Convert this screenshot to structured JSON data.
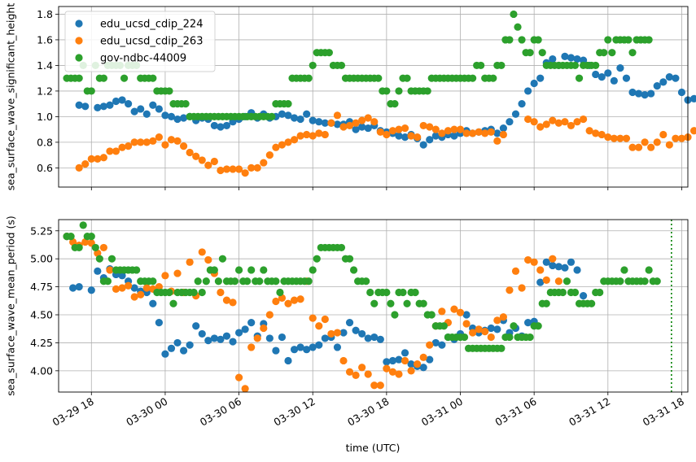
{
  "chart_data": {
    "type": "scatter",
    "xlabel": "time (UTC)",
    "xlim": [
      "2024-03-29T15:20",
      "2024-03-31T18:30"
    ],
    "x_ticks": [
      {
        "t": "2024-03-29T18:00",
        "label": "03-29 18"
      },
      {
        "t": "2024-03-30T00:00",
        "label": "03-30 00"
      },
      {
        "t": "2024-03-30T06:00",
        "label": "03-30 06"
      },
      {
        "t": "2024-03-30T12:00",
        "label": "03-30 12"
      },
      {
        "t": "2024-03-30T18:00",
        "label": "03-30 18"
      },
      {
        "t": "2024-03-31T00:00",
        "label": "03-31 00"
      },
      {
        "t": "2024-03-31T06:00",
        "label": "03-31 06"
      },
      {
        "t": "2024-03-31T12:00",
        "label": "03-31 12"
      },
      {
        "t": "2024-03-31T18:00",
        "label": "03-31 18"
      }
    ],
    "grid": true,
    "legend_location": "upper-left",
    "colors": {
      "edu_ucsd_cdip_224": "#1f77b4",
      "edu_ucsd_cdip_263": "#ff7f0e",
      "gov-ndbc-44009": "#2ca02c",
      "vline": "#008000"
    },
    "subplots": [
      {
        "ylabel": "sea_surface_wave_significant_height",
        "ylim": [
          0.45,
          1.86
        ],
        "yticks": [
          "0.6",
          "0.8",
          "1.0",
          "1.2",
          "1.4",
          "1.6",
          "1.8"
        ],
        "legend": true,
        "series": [
          {
            "name": "edu_ucsd_cdip_224",
            "x_start": "2024-03-29T17:00",
            "step_min": 30,
            "values": [
              1.09,
              1.08,
              null,
              1.07,
              1.08,
              1.09,
              1.12,
              1.13,
              1.1,
              1.04,
              1.06,
              1.02,
              1.09,
              1.06,
              1.01,
              1.0,
              0.98,
              0.99,
              1.0,
              0.97,
              0.99,
              0.98,
              0.93,
              0.92,
              0.93,
              0.96,
              0.98,
              1.0,
              1.03,
              0.99,
              1.02,
              0.99,
              1.0,
              1.02,
              1.01,
              0.99,
              0.98,
              1.02,
              0.97,
              0.96,
              0.95,
              0.95,
              0.94,
              0.94,
              0.96,
              0.9,
              0.92,
              0.91,
              0.93,
              0.89,
              0.88,
              0.87,
              0.85,
              0.84,
              0.86,
              0.83,
              0.78,
              0.82,
              0.85,
              0.84,
              0.86,
              0.85,
              0.87,
              0.89,
              0.87,
              0.88,
              0.89,
              0.9,
              0.87,
              0.91,
              0.96,
              1.02,
              1.1,
              1.2,
              1.26,
              1.3,
              1.42,
              1.45,
              1.4,
              1.47,
              1.46,
              1.45,
              1.44,
              1.4,
              1.33,
              1.31,
              1.34,
              1.28,
              1.38,
              1.3,
              1.19,
              1.18,
              1.17,
              1.18,
              1.24,
              1.27,
              1.31,
              1.3,
              1.19,
              1.13,
              1.14,
              1.21,
              1.13,
              1.12,
              1.14,
              1.18,
              1.13,
              1.24
            ]
          },
          {
            "name": "edu_ucsd_cdip_263",
            "x_start": "2024-03-29T17:00",
            "step_min": 30,
            "values": [
              0.6,
              0.63,
              0.67,
              0.67,
              0.68,
              0.73,
              0.73,
              0.76,
              0.77,
              0.8,
              0.8,
              0.8,
              0.81,
              0.84,
              0.78,
              0.82,
              0.81,
              0.77,
              0.72,
              0.69,
              0.66,
              0.62,
              0.65,
              0.58,
              0.59,
              0.59,
              0.59,
              0.56,
              0.6,
              0.6,
              0.64,
              0.7,
              0.76,
              0.78,
              0.8,
              0.82,
              0.85,
              0.86,
              0.85,
              0.87,
              0.86,
              0.95,
              1.01,
              0.92,
              0.93,
              0.95,
              0.97,
              0.99,
              0.96,
              0.88,
              0.86,
              0.89,
              0.9,
              0.91,
              0.85,
              0.84,
              0.93,
              0.92,
              0.9,
              0.87,
              0.89,
              0.9,
              0.9,
              0.87,
              0.87,
              0.88,
              0.87,
              0.88,
              0.81,
              0.86,
              null,
              null,
              null,
              0.98,
              0.96,
              0.92,
              0.94,
              0.97,
              0.95,
              0.96,
              0.93,
              0.96,
              0.98,
              0.89,
              0.87,
              0.86,
              0.84,
              0.83,
              0.83,
              0.83,
              0.76,
              0.76,
              0.8,
              0.76,
              0.8,
              0.86,
              0.78,
              0.83,
              0.83,
              0.84,
              0.89,
              0.94,
              0.96,
              1.0,
              1.02,
              1.09,
              1.01
            ]
          },
          {
            "name": "gov-ndbc-44009",
            "x_start": "2024-03-29T16:00",
            "step_min": 20,
            "values": [
              1.3,
              1.3,
              1.3,
              1.3,
              1.4,
              1.2,
              1.2,
              1.4,
              1.3,
              1.3,
              1.4,
              1.4,
              1.4,
              1.4,
              1.3,
              1.4,
              1.4,
              1.4,
              1.3,
              1.3,
              1.3,
              1.3,
              1.2,
              1.2,
              1.2,
              1.2,
              1.1,
              1.1,
              1.1,
              1.1,
              1.0,
              1.0,
              1.0,
              1.0,
              1.0,
              1.0,
              1.0,
              1.0,
              1.0,
              1.0,
              1.0,
              1.0,
              1.0,
              1.0,
              1.0,
              1.0,
              1.0,
              1.0,
              1.0,
              1.0,
              1.0,
              1.1,
              1.1,
              1.1,
              1.1,
              1.3,
              1.3,
              1.3,
              1.3,
              1.3,
              1.4,
              1.5,
              1.5,
              1.5,
              1.5,
              1.4,
              1.4,
              1.4,
              1.3,
              1.3,
              1.3,
              1.3,
              1.3,
              1.3,
              1.3,
              1.3,
              1.3,
              1.2,
              1.2,
              1.1,
              1.1,
              1.2,
              1.3,
              1.3,
              1.2,
              1.2,
              1.2,
              1.2,
              1.2,
              1.3,
              1.3,
              1.3,
              1.3,
              1.3,
              1.3,
              1.3,
              1.3,
              1.3,
              1.3,
              1.3,
              1.4,
              1.4,
              1.3,
              1.3,
              1.3,
              1.4,
              1.4,
              1.6,
              1.6,
              1.8,
              1.7,
              1.6,
              1.5,
              1.5,
              1.6,
              1.6,
              1.5,
              1.4,
              1.4,
              1.4,
              1.4,
              1.4,
              1.4,
              1.4,
              1.4,
              1.3,
              1.4,
              1.4,
              1.4,
              1.4,
              1.5,
              1.5,
              1.6,
              1.5,
              1.6,
              1.6,
              1.6,
              1.6,
              1.5,
              1.6,
              1.6,
              1.6,
              1.6
            ]
          }
        ]
      },
      {
        "ylabel": "sea_surface_wave_mean_period (s)",
        "ylim": [
          3.81,
          5.35
        ],
        "yticks": [
          "4.00",
          "4.25",
          "4.50",
          "4.75",
          "5.00",
          "5.25"
        ],
        "legend": false,
        "vline": "2024-03-31T17:10",
        "series": [
          {
            "name": "edu_ucsd_cdip_224",
            "x_start": "2024-03-29T16:00",
            "step_min": 30,
            "values": [
              5.2,
              4.74,
              4.75,
              null,
              4.72,
              4.89,
              4.83,
              4.91,
              4.86,
              4.85,
              4.8,
              4.74,
              4.71,
              4.7,
              4.6,
              4.43,
              4.15,
              4.2,
              4.25,
              4.18,
              4.23,
              4.4,
              4.33,
              4.27,
              4.29,
              4.28,
              4.31,
              4.26,
              4.34,
              4.37,
              4.43,
              4.31,
              4.42,
              4.29,
              4.18,
              4.3,
              4.09,
              4.19,
              4.21,
              4.19,
              4.21,
              4.23,
              4.29,
              4.3,
              4.21,
              4.34,
              4.43,
              4.36,
              4.33,
              4.29,
              4.3,
              4.28,
              4.08,
              4.09,
              4.1,
              4.16,
              4.06,
              4.04,
              4.03,
              4.1,
              4.25,
              4.23,
              4.3,
              4.28,
              4.33,
              4.5,
              4.38,
              4.34,
              4.36,
              4.38,
              4.37,
              4.45,
              4.34,
              4.38,
              4.31,
              4.43,
              4.44,
              4.79,
              4.97,
              4.94,
              4.93,
              4.92,
              4.97,
              4.9,
              4.67
            ]
          },
          {
            "name": "edu_ucsd_cdip_263",
            "x_start": "2024-03-29T16:00",
            "step_min": 30,
            "values": [
              5.2,
              5.15,
              5.12,
              5.15,
              5.14,
              5.05,
              5.1,
              4.9,
              4.73,
              4.74,
              4.76,
              4.66,
              4.68,
              4.74,
              4.73,
              4.75,
              4.85,
              4.71,
              4.87,
              4.7,
              4.97,
              4.67,
              5.06,
              4.99,
              4.87,
              4.7,
              4.63,
              4.61,
              3.94,
              3.84,
              4.21,
              4.29,
              4.38,
              4.5,
              4.62,
              4.65,
              4.6,
              4.63,
              4.64,
              4.8,
              4.47,
              4.4,
              4.46,
              4.33,
              4.34,
              4.09,
              3.99,
              3.96,
              4.03,
              3.97,
              3.87,
              3.87,
              4.02,
              3.99,
              3.97,
              4.09,
              4.0,
              4.06,
              4.12,
              4.23,
              4.4,
              4.53,
              4.43,
              4.55,
              4.52,
              4.42,
              4.34,
              4.37,
              4.35,
              4.3,
              4.45,
              4.48,
              4.72,
              4.89,
              4.74,
              4.99,
              4.97,
              4.9,
              4.81,
              5.0,
              4.8
            ]
          },
          {
            "name": "gov-ndbc-44009",
            "x_start": "2024-03-29T16:00",
            "step_min": 20,
            "values": [
              5.2,
              5.2,
              5.1,
              5.1,
              5.3,
              5.2,
              5.2,
              5.1,
              5.0,
              4.8,
              4.8,
              5.0,
              4.9,
              4.9,
              4.9,
              4.9,
              4.9,
              4.9,
              4.8,
              4.8,
              4.8,
              4.8,
              4.7,
              4.7,
              4.7,
              4.7,
              4.6,
              4.7,
              4.7,
              4.7,
              4.7,
              4.7,
              4.8,
              4.7,
              4.8,
              4.9,
              4.9,
              4.8,
              5.0,
              4.8,
              4.8,
              4.8,
              4.9,
              4.8,
              4.8,
              4.9,
              4.8,
              4.8,
              4.9,
              4.8,
              4.8,
              4.8,
              4.7,
              4.8,
              4.8,
              4.8,
              4.8,
              4.8,
              4.8,
              4.8,
              4.9,
              5.0,
              5.1,
              5.1,
              5.1,
              5.1,
              5.1,
              5.1,
              5.0,
              5.0,
              4.9,
              4.8,
              4.8,
              4.8,
              4.7,
              4.6,
              4.7,
              4.7,
              4.7,
              4.6,
              4.5,
              4.7,
              4.7,
              4.6,
              4.7,
              4.7,
              4.6,
              4.6,
              4.5,
              4.5,
              4.4,
              4.4,
              4.4,
              4.3,
              4.3,
              4.3,
              4.3,
              4.3,
              4.2,
              4.2,
              4.2,
              4.2,
              4.2,
              4.2,
              4.2,
              4.2,
              4.2,
              4.3,
              4.3,
              4.4,
              4.3,
              4.3,
              4.3,
              4.3,
              4.4,
              4.4,
              4.6,
              4.6,
              4.7,
              4.7,
              4.7,
              4.7,
              4.8,
              4.7,
              4.7,
              4.6,
              4.6,
              4.6,
              4.6,
              4.7,
              4.7,
              4.8,
              4.8,
              4.8,
              4.8,
              4.8,
              4.9,
              4.8,
              4.8,
              4.8,
              4.8,
              4.8,
              4.9,
              4.8,
              4.8
            ]
          }
        ]
      }
    ]
  }
}
